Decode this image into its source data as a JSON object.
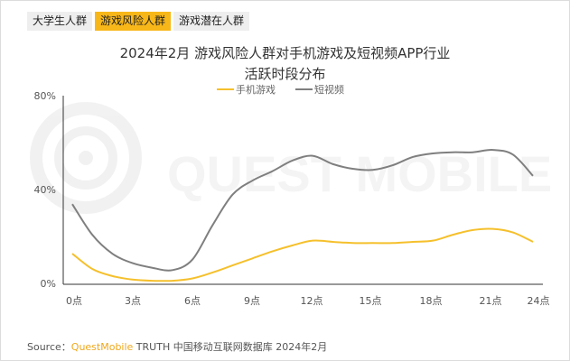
{
  "tabs": [
    {
      "label": "大学生人群",
      "active": false
    },
    {
      "label": "游戏风险人群",
      "active": true
    },
    {
      "label": "游戏潜在人群",
      "active": false
    }
  ],
  "title_line1": "2024年2月 游戏风险人群对手机游戏及短视频APP行业",
  "title_line2": "活跃时段分布",
  "legend": [
    {
      "label": "手机游戏",
      "color": "#f5c02c"
    },
    {
      "label": "短视频",
      "color": "#7f7f7f"
    }
  ],
  "y_ticks": [
    "80%",
    "40%",
    "0%"
  ],
  "x_ticks": [
    "0点",
    "3点",
    "6点",
    "9点",
    "12点",
    "15点",
    "18点",
    "21点",
    "24点"
  ],
  "source": {
    "prefix": "Source：",
    "brand": "QuestMobile",
    "rest": " TRUTH 中国移动互联网数据库 2024年2月"
  },
  "watermark": "QUEST MOBILE",
  "chart_data": {
    "type": "line",
    "title": "2024年2月 游戏风险人群对手机游戏及短视频APP行业活跃时段分布",
    "xlabel": "",
    "ylabel": "",
    "ylim": [
      0,
      80
    ],
    "grid": false,
    "legend_position": "top",
    "x": [
      0,
      1,
      2,
      3,
      4,
      5,
      6,
      7,
      8,
      9,
      10,
      11,
      12,
      13,
      14,
      15,
      16,
      17,
      18,
      19,
      20,
      21,
      22,
      23
    ],
    "x_tick_labels": [
      "0点",
      "3点",
      "6点",
      "9点",
      "12点",
      "15点",
      "18点",
      "21点",
      "24点"
    ],
    "series": [
      {
        "name": "手机游戏",
        "color": "#f5c02c",
        "values": [
          13,
          6.5,
          3.5,
          2,
          1.5,
          1.5,
          2.5,
          5,
          8,
          11,
          14,
          16.5,
          18.5,
          18,
          17.5,
          17.5,
          17.5,
          18,
          18.5,
          21,
          23,
          23.5,
          22,
          18
        ]
      },
      {
        "name": "短视频",
        "color": "#7f7f7f",
        "values": [
          34,
          21,
          13,
          9,
          7,
          6,
          10.5,
          25,
          38,
          44,
          48,
          52.5,
          54.5,
          51,
          49,
          48.5,
          50.5,
          54,
          55.5,
          56,
          56,
          57,
          55,
          46
        ]
      }
    ]
  }
}
